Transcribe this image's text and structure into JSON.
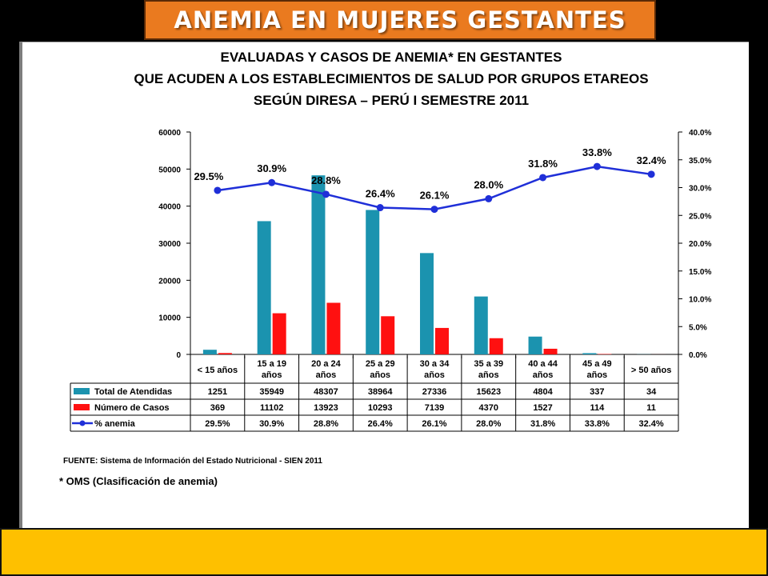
{
  "banner": {
    "title": "ANEMIA EN MUJERES GESTANTES"
  },
  "chart_data": {
    "type": "bar",
    "title_lines": [
      "EVALUADAS Y CASOS DE ANEMIA* EN GESTANTES",
      "QUE ACUDEN A LOS ESTABLECIMIENTOS DE SALUD  POR GRUPOS ETAREOS",
      "SEGÚN DIRESA – PERÚ I SEMESTRE 2011"
    ],
    "categories": [
      [
        "< 15 años"
      ],
      [
        "15 a 19",
        "años"
      ],
      [
        "20 a 24",
        "años"
      ],
      [
        "25 a 29",
        "años"
      ],
      [
        "30 a 34",
        "años"
      ],
      [
        "35 a 39",
        "años"
      ],
      [
        "40 a 44",
        "años"
      ],
      [
        "45 a 49",
        "años"
      ],
      [
        "> 50 años"
      ]
    ],
    "series": [
      {
        "name": "Total de Atendidas",
        "type": "bar",
        "axis": "left",
        "color": "#1B93AF",
        "values": [
          1251,
          35949,
          48307,
          38964,
          27336,
          15623,
          4804,
          337,
          34
        ],
        "labels": [
          "1251",
          "35949",
          "48307",
          "38964",
          "27336",
          "15623",
          "4804",
          "337",
          "34"
        ]
      },
      {
        "name": "Número de Casos",
        "type": "bar",
        "axis": "left",
        "color": "#FF1010",
        "values": [
          369,
          11102,
          13923,
          10293,
          7139,
          4370,
          1527,
          114,
          11
        ],
        "labels": [
          "369",
          "11102",
          "13923",
          "10293",
          "7139",
          "4370",
          "1527",
          "114",
          "11"
        ]
      },
      {
        "name": "% anemia",
        "type": "line",
        "axis": "right",
        "color": "#1F2FD8",
        "values": [
          29.5,
          30.9,
          28.8,
          26.4,
          26.1,
          28.0,
          31.8,
          33.8,
          32.4
        ],
        "labels": [
          "29.5%",
          "30.9%",
          "28.8%",
          "26.4%",
          "26.1%",
          "28.0%",
          "31.8%",
          "33.8%",
          "32.4%"
        ]
      }
    ],
    "y_left": {
      "min": 0,
      "max": 60000,
      "ticks": [
        "0",
        "10000",
        "20000",
        "30000",
        "40000",
        "50000",
        "60000"
      ]
    },
    "y_right": {
      "min": 0,
      "max": 40,
      "ticks": [
        "0.0%",
        "5.0%",
        "10.0%",
        "15.0%",
        "20.0%",
        "25.0%",
        "30.0%",
        "35.0%",
        "40.0%"
      ]
    },
    "grid": false,
    "legend": "data-table-below"
  },
  "footer": {
    "source": "FUENTE: Sistema de Información del Estado Nutricional - SIEN 2011",
    "note": "* OMS (Clasificación de anemia)"
  }
}
